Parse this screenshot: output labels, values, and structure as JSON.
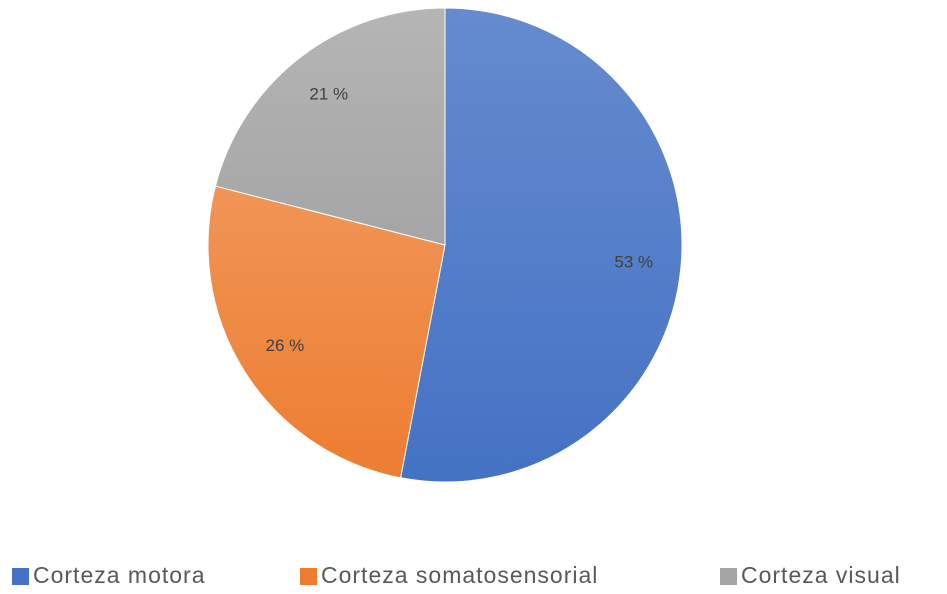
{
  "chart_data": {
    "type": "pie",
    "categories": [
      "Corteza motora",
      "Corteza somatosensorial",
      "Corteza visual"
    ],
    "values": [
      53,
      26,
      21
    ],
    "value_labels": [
      "53 %",
      "26 %",
      "21 %"
    ],
    "colors": [
      "#4472c4",
      "#ed7d31",
      "#a5a5a5"
    ],
    "legend": "bottom"
  }
}
